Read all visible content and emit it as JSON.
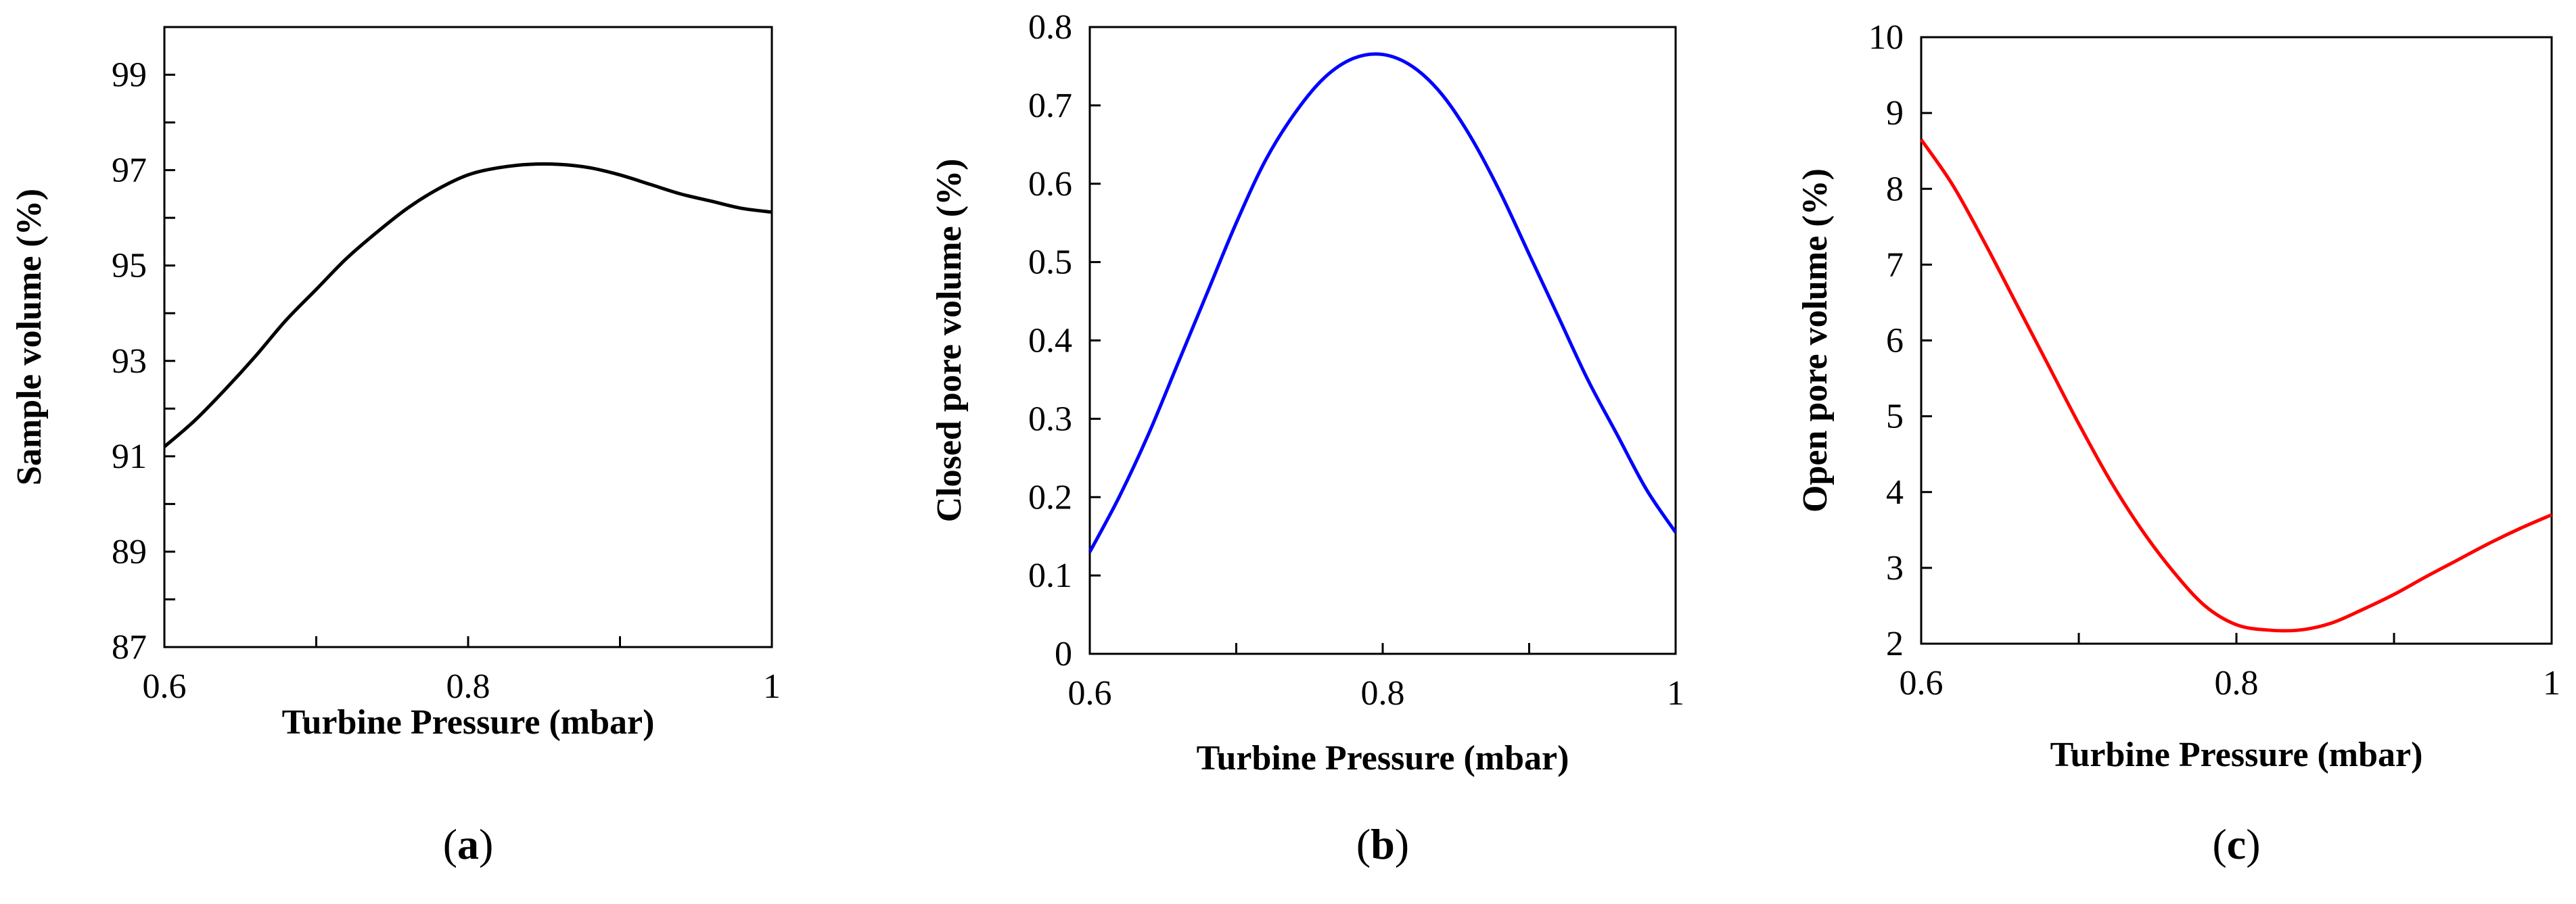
{
  "chart_data": [
    {
      "type": "line",
      "panel_label": "a",
      "xlabel": "Turbine Pressure (mbar)",
      "ylabel": "Sample volume (%)",
      "xlim": [
        0.6,
        1.0
      ],
      "ylim": [
        87,
        100
      ],
      "xticks": [
        0.6,
        0.7,
        0.8,
        0.9,
        1.0
      ],
      "xtick_labels": [
        "0.6",
        "",
        "0.8",
        "",
        "1"
      ],
      "yticks": [
        87,
        88,
        89,
        90,
        91,
        92,
        93,
        94,
        95,
        96,
        97,
        98,
        99,
        100
      ],
      "ytick_labels": [
        "87",
        "",
        "89",
        "",
        "91",
        "",
        "93",
        "",
        "95",
        "",
        "97",
        "",
        "99",
        ""
      ],
      "series": [
        {
          "name": "Sample volume",
          "color": "#000000",
          "x": [
            0.6,
            0.62,
            0.64,
            0.66,
            0.68,
            0.7,
            0.72,
            0.74,
            0.76,
            0.78,
            0.8,
            0.82,
            0.84,
            0.86,
            0.88,
            0.9,
            0.92,
            0.94,
            0.96,
            0.98,
            1.0
          ],
          "y": [
            91.2,
            91.75,
            92.4,
            93.1,
            93.85,
            94.5,
            95.15,
            95.7,
            96.2,
            96.6,
            96.9,
            97.05,
            97.12,
            97.12,
            97.05,
            96.9,
            96.7,
            96.5,
            96.35,
            96.2,
            96.12
          ]
        }
      ]
    },
    {
      "type": "line",
      "panel_label": "b",
      "xlabel": "Turbine Pressure (mbar)",
      "ylabel": "Closed pore volume (%)",
      "xlim": [
        0.6,
        1.0
      ],
      "ylim": [
        0,
        0.8
      ],
      "xticks": [
        0.6,
        0.7,
        0.8,
        0.9,
        1.0
      ],
      "xtick_labels": [
        "0.6",
        "",
        "0.8",
        "",
        "1"
      ],
      "yticks": [
        0,
        0.1,
        0.2,
        0.3,
        0.4,
        0.5,
        0.6,
        0.7,
        0.8
      ],
      "ytick_labels": [
        "0",
        "0.1",
        "0.2",
        "0.3",
        "0.4",
        "0.5",
        "0.6",
        "0.7",
        "0.8"
      ],
      "series": [
        {
          "name": "Closed pore volume",
          "color": "#0000ff",
          "x": [
            0.6,
            0.62,
            0.64,
            0.66,
            0.68,
            0.7,
            0.72,
            0.74,
            0.76,
            0.78,
            0.8,
            0.82,
            0.84,
            0.86,
            0.88,
            0.9,
            0.92,
            0.94,
            0.96,
            0.98,
            1.0
          ],
          "y": [
            0.13,
            0.2,
            0.28,
            0.37,
            0.46,
            0.55,
            0.63,
            0.69,
            0.735,
            0.76,
            0.765,
            0.75,
            0.715,
            0.66,
            0.59,
            0.51,
            0.43,
            0.35,
            0.28,
            0.21,
            0.155
          ]
        }
      ]
    },
    {
      "type": "line",
      "panel_label": "c",
      "xlabel": "Turbine Pressure (mbar)",
      "ylabel": "Open pore volume (%)",
      "xlim": [
        0.6,
        1.0
      ],
      "ylim": [
        2,
        10
      ],
      "xticks": [
        0.6,
        0.7,
        0.8,
        0.9,
        1.0
      ],
      "xtick_labels": [
        "0.6",
        "",
        "0.8",
        "",
        "1"
      ],
      "yticks": [
        2,
        3,
        4,
        5,
        6,
        7,
        8,
        9,
        10
      ],
      "ytick_labels": [
        "2",
        "3",
        "4",
        "5",
        "6",
        "7",
        "8",
        "9",
        "10"
      ],
      "series": [
        {
          "name": "Open pore volume",
          "color": "#ff0000",
          "x": [
            0.6,
            0.62,
            0.64,
            0.66,
            0.68,
            0.7,
            0.72,
            0.74,
            0.76,
            0.78,
            0.8,
            0.82,
            0.84,
            0.86,
            0.88,
            0.9,
            0.92,
            0.94,
            0.96,
            0.98,
            1.0
          ],
          "y": [
            8.65,
            8.05,
            7.3,
            6.5,
            5.7,
            4.9,
            4.15,
            3.5,
            2.95,
            2.5,
            2.25,
            2.18,
            2.18,
            2.27,
            2.45,
            2.65,
            2.88,
            3.1,
            3.32,
            3.52,
            3.7
          ]
        }
      ]
    }
  ]
}
